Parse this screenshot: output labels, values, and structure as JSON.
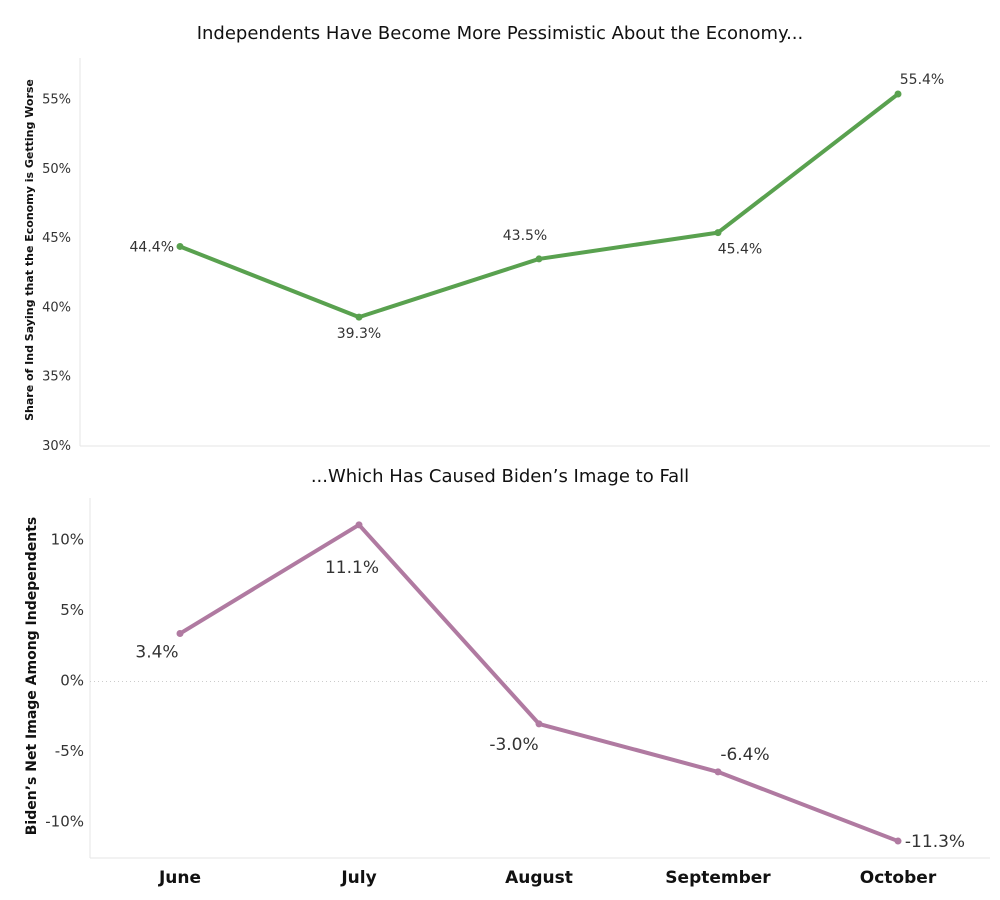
{
  "chart_data": [
    {
      "type": "line",
      "title": "Independents Have Become More Pessimistic About the Economy...",
      "ylabel": "Share of Ind Saying that the Economy is Getting Worse",
      "categories": [
        "June",
        "July",
        "August",
        "September",
        "October"
      ],
      "values": [
        44.4,
        39.3,
        43.5,
        45.4,
        55.4
      ],
      "labels": [
        "44.4%",
        "39.3%",
        "43.5%",
        "45.4%",
        "55.4%"
      ],
      "yticks": [
        "30%",
        "35%",
        "40%",
        "45%",
        "50%",
        "55%"
      ],
      "ylim": [
        30,
        58
      ],
      "color": "#59a14f"
    },
    {
      "type": "line",
      "title": "...Which Has Caused Biden’s Image to Fall",
      "ylabel": "Biden’s Net Image Among Independents",
      "categories": [
        "June",
        "July",
        "August",
        "September",
        "October"
      ],
      "values": [
        3.4,
        11.1,
        -3.0,
        -6.4,
        -11.3
      ],
      "labels": [
        "3.4%",
        "11.1%",
        "-3.0%",
        "-6.4%",
        "-11.3%"
      ],
      "yticks": [
        "-10%",
        "-5%",
        "0%",
        "5%",
        "10%"
      ],
      "ylim": [
        -12.5,
        13
      ],
      "color": "#b07aa1"
    }
  ],
  "xaxis": {
    "labels": [
      "June",
      "July",
      "August",
      "September",
      "October"
    ]
  }
}
